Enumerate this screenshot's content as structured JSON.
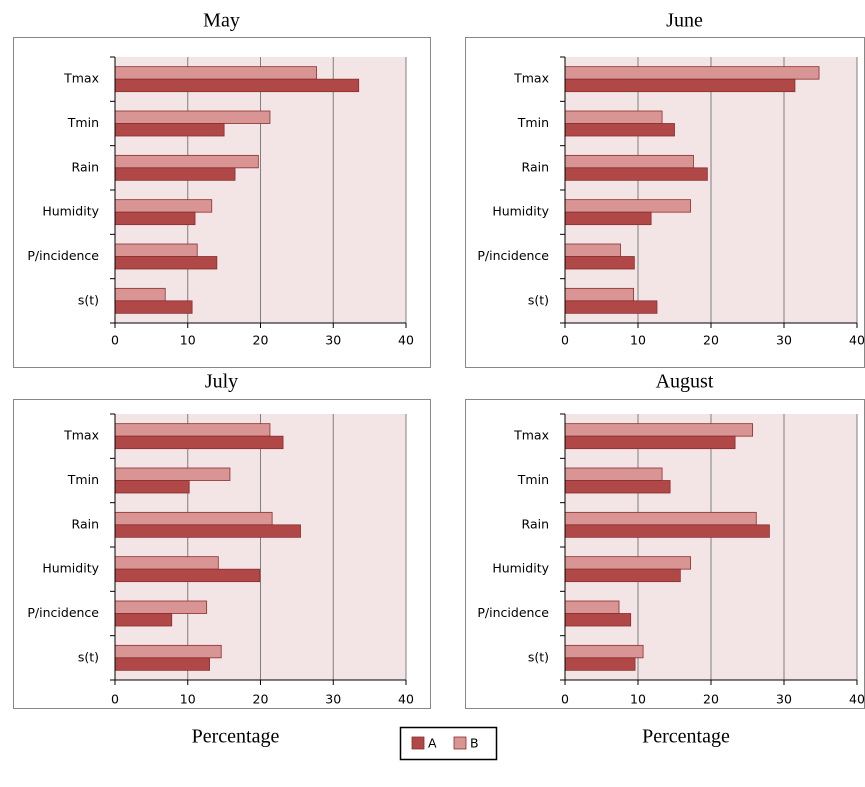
{
  "chart_data": [
    {
      "type": "bar",
      "orientation": "horizontal",
      "title": "May",
      "categories": [
        "Tmax",
        "Tmin",
        "Rain",
        "Humidity",
        "P/incidence",
        "s(t)"
      ],
      "series": [
        {
          "name": "A",
          "color": "#b04848",
          "values": [
            33.5,
            15,
            16.5,
            11,
            14,
            10.6
          ]
        },
        {
          "name": "B",
          "color": "#d99594",
          "values": [
            27.7,
            21.3,
            19.7,
            13.3,
            11.3,
            6.9
          ]
        }
      ],
      "xlim": [
        0,
        40
      ],
      "xticks": [
        0,
        10,
        20,
        30,
        40
      ],
      "grid": true
    },
    {
      "type": "bar",
      "orientation": "horizontal",
      "title": "June",
      "categories": [
        "Tmax",
        "Tmin",
        "Rain",
        "Humidity",
        "P/incidence",
        "s(t)"
      ],
      "series": [
        {
          "name": "A",
          "color": "#b04848",
          "values": [
            31.5,
            15,
            19.5,
            11.8,
            9.5,
            12.6
          ]
        },
        {
          "name": "B",
          "color": "#d99594",
          "values": [
            34.8,
            13.3,
            17.6,
            17.2,
            7.6,
            9.4
          ]
        }
      ],
      "xlim": [
        0,
        40
      ],
      "xticks": [
        0,
        10,
        20,
        30,
        40
      ],
      "grid": true
    },
    {
      "type": "bar",
      "orientation": "horizontal",
      "title": "July",
      "xlabel": "Percentage",
      "categories": [
        "Tmax",
        "Tmin",
        "Rain",
        "Humidity",
        "P/incidence",
        "s(t)"
      ],
      "series": [
        {
          "name": "A",
          "color": "#b04848",
          "values": [
            23.1,
            10.2,
            25.5,
            19.9,
            7.8,
            13
          ]
        },
        {
          "name": "B",
          "color": "#d99594",
          "values": [
            21.3,
            15.8,
            21.6,
            14.2,
            12.6,
            14.6
          ]
        }
      ],
      "xlim": [
        0,
        40
      ],
      "xticks": [
        0,
        10,
        20,
        30,
        40
      ],
      "grid": true
    },
    {
      "type": "bar",
      "orientation": "horizontal",
      "title": "August",
      "xlabel": "Percentage",
      "categories": [
        "Tmax",
        "Tmin",
        "Rain",
        "Humidity",
        "P/incidence",
        "s(t)"
      ],
      "series": [
        {
          "name": "A",
          "color": "#b04848",
          "values": [
            23.3,
            14.4,
            28,
            15.8,
            9,
            9.6
          ]
        },
        {
          "name": "B",
          "color": "#d99594",
          "values": [
            25.7,
            13.3,
            26.2,
            17.2,
            7.4,
            10.7
          ]
        }
      ],
      "xlim": [
        0,
        40
      ],
      "xticks": [
        0,
        10,
        20,
        30,
        40
      ],
      "grid": true
    }
  ]
}
